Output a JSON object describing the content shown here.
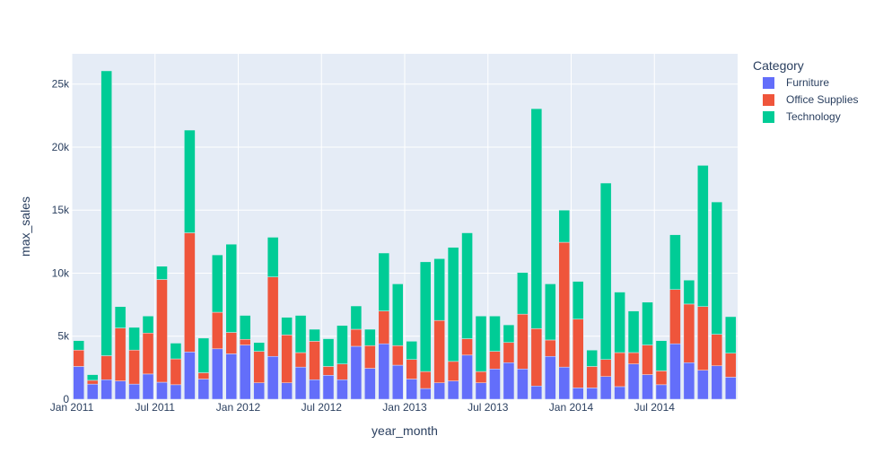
{
  "chart_data": {
    "type": "bar",
    "stacked": true,
    "xlabel": "year_month",
    "ylabel": "max_sales",
    "ylim": [
      0,
      27400
    ],
    "y_ticks": [
      0,
      5000,
      10000,
      15000,
      20000,
      25000
    ],
    "y_tick_labels": [
      "0",
      "5k",
      "10k",
      "15k",
      "20k",
      "25k"
    ],
    "x_tick_labels": [
      "Jan 2011",
      "Jul 2011",
      "Jan 2012",
      "Jul 2012",
      "Jan 2013",
      "Jul 2013",
      "Jan 2014",
      "Jul 2014"
    ],
    "x_tick_months": [
      "2011-01",
      "2011-07",
      "2012-01",
      "2012-07",
      "2013-01",
      "2013-07",
      "2014-01",
      "2014-07"
    ],
    "grid": true,
    "legend_title": "Category",
    "legend_position": "top-right",
    "categories": [
      "2011-01",
      "2011-02",
      "2011-03",
      "2011-04",
      "2011-05",
      "2011-06",
      "2011-07",
      "2011-08",
      "2011-09",
      "2011-10",
      "2011-11",
      "2011-12",
      "2012-01",
      "2012-02",
      "2012-03",
      "2012-04",
      "2012-05",
      "2012-06",
      "2012-07",
      "2012-08",
      "2012-09",
      "2012-10",
      "2012-11",
      "2012-12",
      "2013-01",
      "2013-02",
      "2013-03",
      "2013-04",
      "2013-05",
      "2013-06",
      "2013-07",
      "2013-08",
      "2013-09",
      "2013-10",
      "2013-11",
      "2013-12",
      "2014-01",
      "2014-02",
      "2014-03",
      "2014-04",
      "2014-05",
      "2014-06",
      "2014-07",
      "2014-08",
      "2014-09",
      "2014-10",
      "2014-11",
      "2014-12"
    ],
    "series": [
      {
        "name": "Furniture",
        "color": "#636efa",
        "values": [
          2600,
          1200,
          1550,
          1450,
          1200,
          2000,
          1350,
          1150,
          3750,
          1600,
          4000,
          3600,
          4300,
          1300,
          3400,
          1300,
          2550,
          1550,
          1900,
          1550,
          4200,
          2450,
          4400,
          2700,
          1600,
          850,
          1300,
          1450,
          3500,
          1300,
          2400,
          2900,
          2400,
          1050,
          3400,
          2550,
          900,
          900,
          1800,
          1000,
          2800,
          1950,
          1150,
          4400,
          2900,
          2300,
          2650,
          1750
        ]
      },
      {
        "name": "Office Supplies",
        "color": "#ef553b",
        "values": [
          1300,
          300,
          1900,
          4200,
          2700,
          3250,
          8150,
          2050,
          9450,
          500,
          2900,
          1700,
          450,
          2500,
          6300,
          3800,
          1150,
          3050,
          700,
          1250,
          1350,
          1800,
          2600,
          1550,
          1550,
          1350,
          4950,
          1550,
          1300,
          900,
          1400,
          1600,
          4350,
          4550,
          1300,
          9900,
          5450,
          1700,
          1350,
          2700,
          900,
          2350,
          1100,
          4300,
          4650,
          5050,
          2500,
          1900
        ]
      },
      {
        "name": "Technology",
        "color": "#00cc96",
        "values": [
          750,
          450,
          22600,
          1700,
          1800,
          1350,
          1050,
          1250,
          8150,
          2750,
          4550,
          7000,
          1900,
          700,
          3150,
          1400,
          2950,
          950,
          2200,
          3050,
          1850,
          1300,
          4600,
          4900,
          1450,
          8700,
          4900,
          9050,
          8400,
          4400,
          2800,
          1400,
          3300,
          17450,
          4450,
          2550,
          3000,
          1300,
          14000,
          4800,
          3300,
          3400,
          2400,
          4350,
          1900,
          11200,
          10500,
          2900
        ]
      }
    ]
  }
}
